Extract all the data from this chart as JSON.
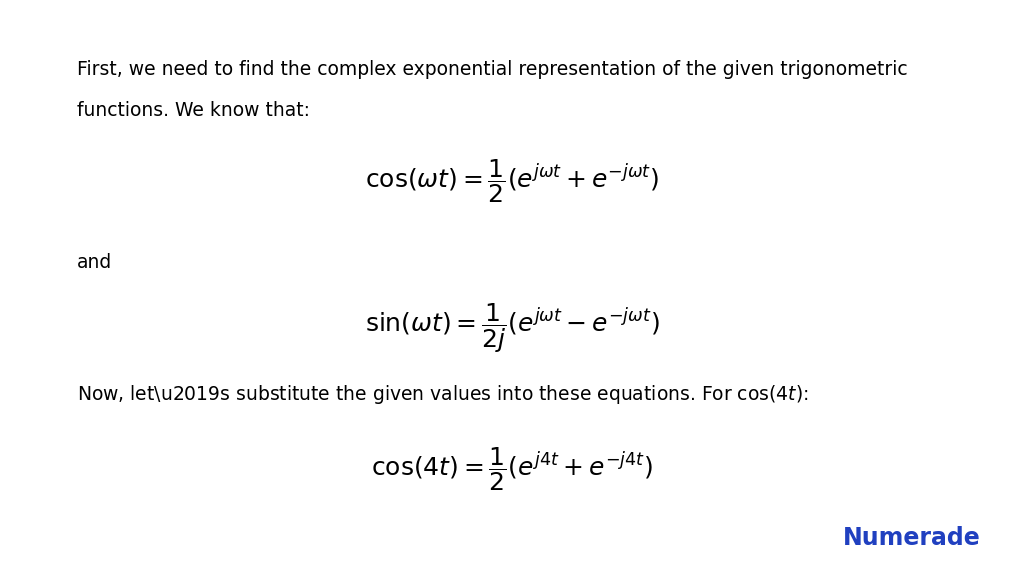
{
  "background_color": "#ffffff",
  "text_color": "#000000",
  "numerade_color": "#2040c0",
  "paragraph1_line1": "First, we need to find the complex exponential representation of the given trigonometric",
  "paragraph1_line2": "functions. We know that:",
  "and_text": "and",
  "paragraph2": "Now, let’s substitute the given values into these equations. For $\\cos(4t)$:",
  "numerade_text": "Numerade",
  "fig_width": 10.24,
  "fig_height": 5.76,
  "dpi": 100
}
